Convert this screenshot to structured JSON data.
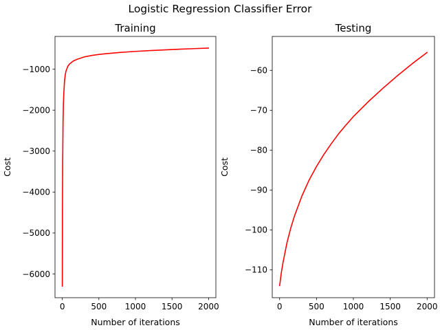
{
  "figure": {
    "suptitle": "Logistic Regression Classifier Error"
  },
  "chart_data": [
    {
      "type": "line",
      "title": "Training",
      "xlabel": "Number of iterations",
      "ylabel": "Cost",
      "xlim": [
        -100,
        2100
      ],
      "ylim": [
        -6580,
        -200
      ],
      "xticks": [
        0,
        500,
        1000,
        1500,
        2000
      ],
      "yticks": [
        -6000,
        -5000,
        -4000,
        -3000,
        -2000,
        -1000
      ],
      "grid": false,
      "legend": "none",
      "series": [
        {
          "color": "#ff0000",
          "x": [
            0,
            2,
            5,
            10,
            15,
            20,
            30,
            40,
            50,
            75,
            100,
            150,
            200,
            300,
            400,
            500,
            600,
            800,
            1000,
            1200,
            1400,
            1600,
            1800,
            2000
          ],
          "y": [
            -6300,
            -4500,
            -3300,
            -2300,
            -1850,
            -1600,
            -1300,
            -1140,
            -1050,
            -930,
            -870,
            -800,
            -760,
            -700,
            -665,
            -640,
            -620,
            -590,
            -565,
            -545,
            -528,
            -512,
            -498,
            -485
          ]
        }
      ]
    },
    {
      "type": "line",
      "title": "Testing",
      "xlabel": "Number of iterations",
      "ylabel": "Cost",
      "xlim": [
        -100,
        2100
      ],
      "ylim": [
        -117,
        -51.5
      ],
      "xticks": [
        0,
        500,
        1000,
        1500,
        2000
      ],
      "yticks": [
        -110,
        -100,
        -90,
        -80,
        -70,
        -60
      ],
      "grid": false,
      "legend": "none",
      "series": [
        {
          "color": "#ff0000",
          "x": [
            0,
            25,
            50,
            100,
            150,
            200,
            300,
            400,
            500,
            600,
            700,
            800,
            900,
            1000,
            1200,
            1400,
            1600,
            1800,
            2000
          ],
          "y": [
            -114,
            -110.5,
            -107.8,
            -103.2,
            -99.6,
            -96.6,
            -91.6,
            -87.5,
            -84.1,
            -81.1,
            -78.4,
            -75.9,
            -73.7,
            -71.6,
            -67.9,
            -64.5,
            -61.3,
            -58.3,
            -55.5
          ]
        }
      ]
    }
  ]
}
